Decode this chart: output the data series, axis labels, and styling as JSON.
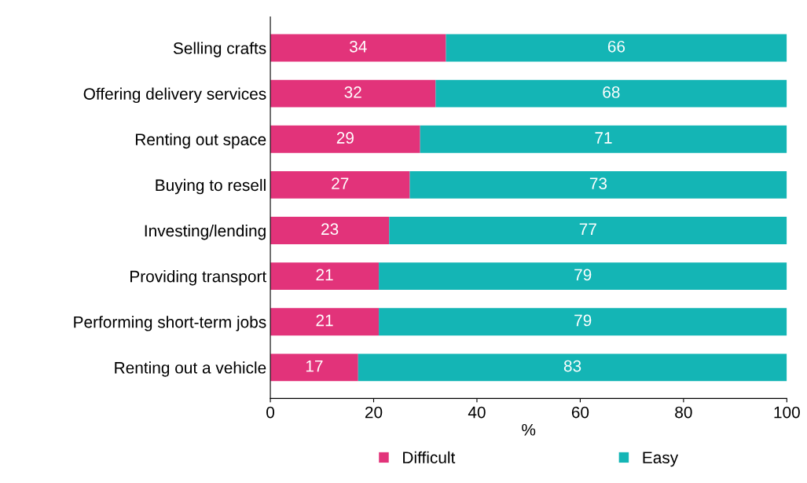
{
  "chart_data": {
    "type": "bar",
    "orientation": "horizontal",
    "stacked": true,
    "xlabel": "%",
    "categories": [
      "Selling crafts",
      "Offering delivery services",
      "Renting out space",
      "Buying to resell",
      "Investing/lending",
      "Providing transport",
      "Performing short-term jobs",
      "Renting out a vehicle"
    ],
    "series": [
      {
        "name": "Difficult",
        "color": "#e2337a",
        "values": [
          34,
          32,
          29,
          27,
          23,
          21,
          21,
          17
        ]
      },
      {
        "name": "Easy",
        "color": "#14b5b5",
        "values": [
          66,
          68,
          71,
          73,
          77,
          79,
          79,
          83
        ]
      }
    ],
    "xlim": [
      0,
      100
    ],
    "xticks": [
      0,
      20,
      40,
      60,
      80,
      100
    ],
    "data_labels": true,
    "grid": false,
    "legend": "bottom"
  }
}
